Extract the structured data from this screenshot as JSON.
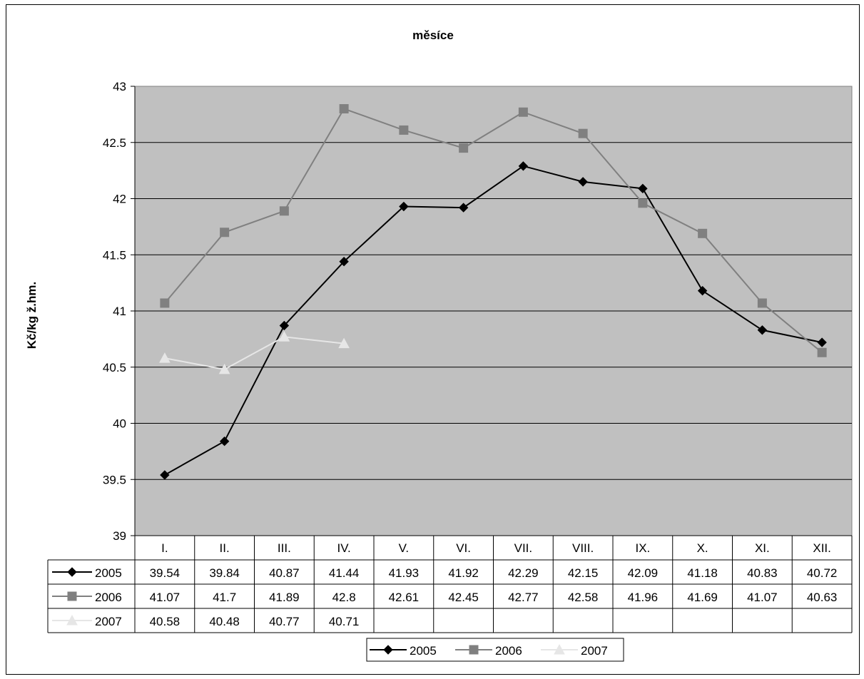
{
  "chart_data": {
    "type": "line",
    "title": "měsíce",
    "xlabel": "",
    "ylabel": "Kč/kg ž.hm.",
    "ylim": [
      39,
      43
    ],
    "ytick_step": 0.5,
    "grid": true,
    "legend_position": "bottom",
    "plot_background": "#c0c0c0",
    "categories": [
      "I.",
      "II.",
      "III.",
      "IV.",
      "V.",
      "VI.",
      "VII.",
      "VIII.",
      "IX.",
      "X.",
      "XI.",
      "XII."
    ],
    "series": [
      {
        "name": "2005",
        "color": "#000000",
        "marker": "diamond",
        "values": [
          39.54,
          39.84,
          40.87,
          41.44,
          41.93,
          41.92,
          42.29,
          42.15,
          42.09,
          41.18,
          40.83,
          40.72
        ]
      },
      {
        "name": "2006",
        "color": "#808080",
        "marker": "square",
        "values": [
          41.07,
          41.7,
          41.89,
          42.8,
          42.61,
          42.45,
          42.77,
          42.58,
          41.96,
          41.69,
          41.07,
          40.63
        ]
      },
      {
        "name": "2007",
        "color": "#e6e6e6",
        "marker": "triangle",
        "values": [
          40.58,
          40.48,
          40.77,
          40.71,
          null,
          null,
          null,
          null,
          null,
          null,
          null,
          null
        ]
      }
    ]
  }
}
